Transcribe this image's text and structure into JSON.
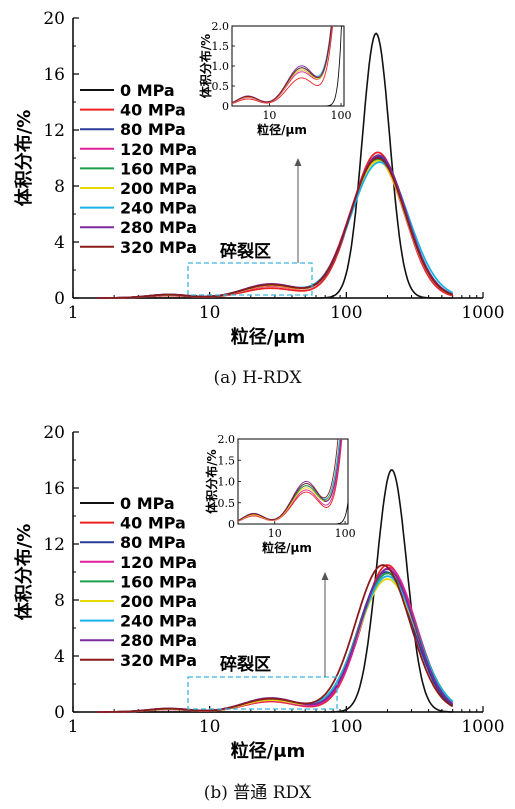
{
  "chart_data": [
    {
      "type": "line",
      "caption": "(a) H-RDX",
      "xlabel": "粒径/μm",
      "ylabel": "体积分布/%",
      "xscale": "log",
      "xlim": [
        1,
        1000
      ],
      "ylim": [
        0,
        20
      ],
      "xticks": [
        "1",
        "10",
        "100",
        "1000"
      ],
      "yticks": [
        "0",
        "4",
        "8",
        "12",
        "16",
        "20"
      ],
      "annotation": "碎裂区",
      "legend_placement": "left",
      "inset": {
        "xlim": [
          3,
          110
        ],
        "ylim": [
          0,
          2.0
        ],
        "yticks": [
          "0",
          "0.5",
          "1.0",
          "1.5",
          "2.0"
        ],
        "xticks": [
          "10",
          "100"
        ],
        "ylabel": "体积分布/%",
        "xlabel": "粒径/μm"
      },
      "series": [
        {
          "name": "0 MPa",
          "color": "#111111",
          "peak_x": 165,
          "peak_y": 18.9,
          "sigma": 0.1,
          "frag": 0.0
        },
        {
          "name": "40 MPa",
          "color": "#ee2222",
          "peak_x": 170,
          "peak_y": 10.4,
          "sigma": 0.19,
          "frag": 0.7
        },
        {
          "name": "80 MPa",
          "color": "#2a3c9a",
          "peak_x": 172,
          "peak_y": 10.1,
          "sigma": 0.2,
          "frag": 0.9
        },
        {
          "name": "120 MPa",
          "color": "#e0209a",
          "peak_x": 168,
          "peak_y": 9.9,
          "sigma": 0.2,
          "frag": 0.85
        },
        {
          "name": "160 MPa",
          "color": "#1a9e4a",
          "peak_x": 170,
          "peak_y": 9.9,
          "sigma": 0.2,
          "frag": 0.95
        },
        {
          "name": "200 MPa",
          "color": "#e8d800",
          "peak_x": 170,
          "peak_y": 9.8,
          "sigma": 0.2,
          "frag": 0.9
        },
        {
          "name": "240 MPa",
          "color": "#19b3e6",
          "peak_x": 175,
          "peak_y": 9.7,
          "sigma": 0.21,
          "frag": 0.95
        },
        {
          "name": "280 MPa",
          "color": "#7b2a9a",
          "peak_x": 172,
          "peak_y": 10.2,
          "sigma": 0.2,
          "frag": 1.0
        },
        {
          "name": "320 MPa",
          "color": "#8b1a1a",
          "peak_x": 170,
          "peak_y": 10.0,
          "sigma": 0.2,
          "frag": 0.95
        }
      ]
    },
    {
      "type": "line",
      "caption": "(b) 普通 RDX",
      "xlabel": "粒径/μm",
      "ylabel": "体积分布/%",
      "xscale": "log",
      "xlim": [
        1,
        1000
      ],
      "ylim": [
        0,
        20
      ],
      "xticks": [
        "1",
        "10",
        "100",
        "1000"
      ],
      "yticks": [
        "0",
        "4",
        "8",
        "12",
        "16",
        "20"
      ],
      "annotation": "碎裂区",
      "legend_placement": "left",
      "inset": {
        "xlim": [
          3,
          110
        ],
        "ylim": [
          0,
          2.0
        ],
        "yticks": [
          "0",
          "0.5",
          "1.0",
          "1.5",
          "2.0"
        ],
        "xticks": [
          "10",
          "100"
        ],
        "ylabel": "体积分布/%",
        "xlabel": "粒径/μm"
      },
      "series": [
        {
          "name": "0 MPa",
          "color": "#111111",
          "peak_x": 215,
          "peak_y": 17.3,
          "sigma": 0.11,
          "frag": 0.0
        },
        {
          "name": "40 MPa",
          "color": "#ee2222",
          "peak_x": 200,
          "peak_y": 10.5,
          "sigma": 0.19,
          "frag": 0.75
        },
        {
          "name": "80 MPa",
          "color": "#2a3c9a",
          "peak_x": 195,
          "peak_y": 10.0,
          "sigma": 0.2,
          "frag": 0.9
        },
        {
          "name": "120 MPa",
          "color": "#e0209a",
          "peak_x": 205,
          "peak_y": 10.3,
          "sigma": 0.2,
          "frag": 0.8
        },
        {
          "name": "160 MPa",
          "color": "#1a9e4a",
          "peak_x": 200,
          "peak_y": 9.9,
          "sigma": 0.21,
          "frag": 0.9
        },
        {
          "name": "200 MPa",
          "color": "#e8d800",
          "peak_x": 200,
          "peak_y": 9.5,
          "sigma": 0.21,
          "frag": 0.85
        },
        {
          "name": "240 MPa",
          "color": "#19b3e6",
          "peak_x": 200,
          "peak_y": 9.7,
          "sigma": 0.21,
          "frag": 0.95
        },
        {
          "name": "280 MPa",
          "color": "#7b2a9a",
          "peak_x": 200,
          "peak_y": 10.2,
          "sigma": 0.2,
          "frag": 1.0
        },
        {
          "name": "320 MPa",
          "color": "#8b1a1a",
          "peak_x": 185,
          "peak_y": 10.5,
          "sigma": 0.2,
          "frag": 0.95
        }
      ]
    }
  ]
}
